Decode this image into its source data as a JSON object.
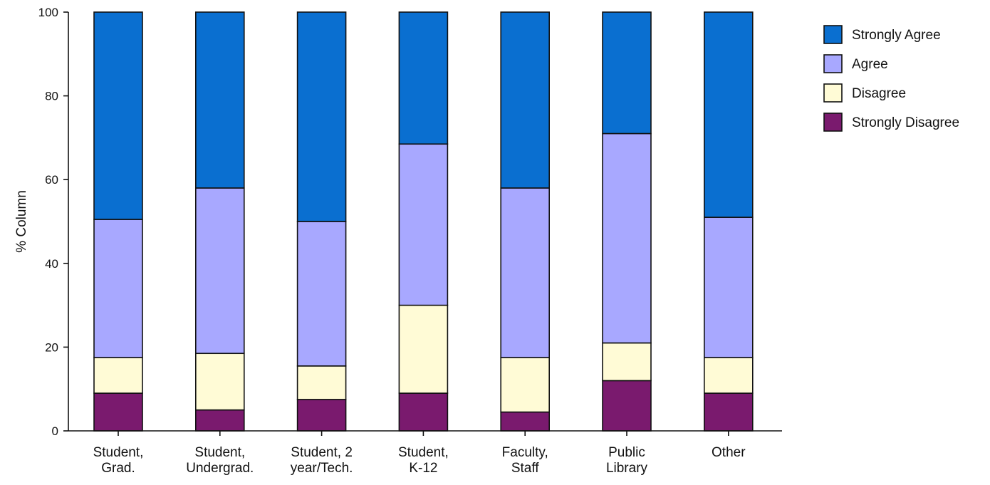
{
  "chart_data": {
    "type": "bar",
    "stacked": true,
    "title": "",
    "xlabel": "",
    "ylabel": "% Column",
    "ylim": [
      0,
      100
    ],
    "yticks": [
      0,
      20,
      40,
      60,
      80,
      100
    ],
    "grid": false,
    "legend_position": "right",
    "categories": [
      [
        "Student,",
        "Grad."
      ],
      [
        "Student,",
        "Undergrad."
      ],
      [
        "Student, 2",
        "year/Tech."
      ],
      [
        "Student,",
        "K-12"
      ],
      [
        "Faculty,",
        "Staff"
      ],
      [
        "Public",
        "Library"
      ],
      [
        "Other"
      ]
    ],
    "series": [
      {
        "name": "Strongly Disagree",
        "color": "#7a1a6e",
        "values": [
          9,
          5,
          7.5,
          9,
          4.5,
          12,
          9
        ]
      },
      {
        "name": "Disagree",
        "color": "#fffbd6",
        "values": [
          8.5,
          13.5,
          8,
          21,
          13,
          9,
          8.5
        ]
      },
      {
        "name": "Agree",
        "color": "#a8a8ff",
        "values": [
          33,
          39.5,
          34.5,
          38.5,
          40.5,
          50,
          33.5
        ]
      },
      {
        "name": "Strongly Agree",
        "color": "#0a6fd0",
        "values": [
          49.5,
          42,
          50,
          31.5,
          42,
          29,
          49
        ]
      }
    ],
    "legend_order": [
      "Strongly Agree",
      "Agree",
      "Disagree",
      "Strongly Disagree"
    ]
  }
}
